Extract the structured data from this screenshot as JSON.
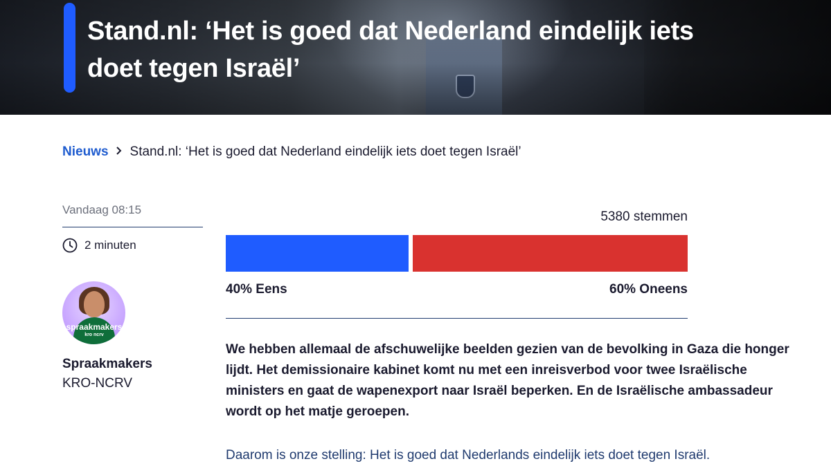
{
  "hero": {
    "title": "Stand.nl: ‘Het is goed dat Nederland eindelijk iets doet tegen Israël’",
    "accent_color": "#1f5cff"
  },
  "breadcrumb": {
    "root": "Nieuws",
    "separator_icon": "chevron-right-icon",
    "current": "Stand.nl: ‘Het is goed dat Nederland eindelijk iets doet tegen Israël’"
  },
  "meta": {
    "date": "Vandaag 08:15",
    "read_time": "2 minuten",
    "read_time_icon": "clock-icon"
  },
  "author": {
    "name": "Spraakmakers",
    "organization": "KRO-NCRV",
    "avatar_logo_text": "spraakmakers",
    "avatar_logo_subtext": "kro ncrv"
  },
  "poll": {
    "votes": "5380 stemmen",
    "agree_fraction": 0.4,
    "disagree_fraction": 0.6,
    "agree_label": "40% Eens",
    "disagree_label": "60% Oneens",
    "agree_color": "#1f5cff",
    "disagree_color": "#d9322f"
  },
  "article": {
    "intro": "We hebben allemaal de afschuwelijke beelden gezien van de bevolking in Gaza die honger lijdt. Het demissionaire kabinet komt nu met een inreisverbod voor twee Israëlische ministers en gaat de wapenexport naar Israël beperken. En de Israëlische ambassadeur wordt op het matje geroepen.",
    "statement": "Daarom is onze stelling: Het is goed dat Nederlands eindelijk iets doet tegen Israël."
  }
}
